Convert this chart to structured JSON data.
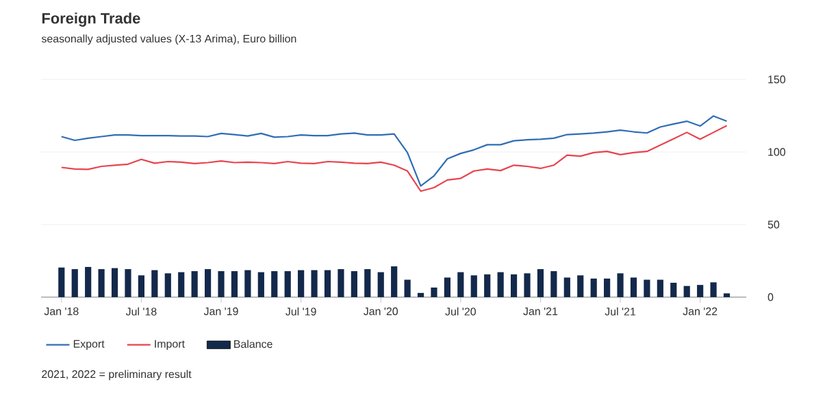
{
  "chart_data": {
    "type": "line",
    "title": "Foreign Trade",
    "subtitle": "seasonally adjusted values (X-13 Arima), Euro billion",
    "x": [
      "2018-01",
      "2018-02",
      "2018-03",
      "2018-04",
      "2018-05",
      "2018-06",
      "2018-07",
      "2018-08",
      "2018-09",
      "2018-10",
      "2018-11",
      "2018-12",
      "2019-01",
      "2019-02",
      "2019-03",
      "2019-04",
      "2019-05",
      "2019-06",
      "2019-07",
      "2019-08",
      "2019-09",
      "2019-10",
      "2019-11",
      "2019-12",
      "2020-01",
      "2020-02",
      "2020-03",
      "2020-04",
      "2020-05",
      "2020-06",
      "2020-07",
      "2020-08",
      "2020-09",
      "2020-10",
      "2020-11",
      "2020-12",
      "2021-01",
      "2021-02",
      "2021-03",
      "2021-04",
      "2021-05",
      "2021-06",
      "2021-07",
      "2021-08",
      "2021-09",
      "2021-10",
      "2021-11",
      "2021-12",
      "2022-01",
      "2022-02",
      "2022-03"
    ],
    "series": [
      {
        "name": "Export",
        "color": "#2f6db5",
        "values": [
          110.6,
          108,
          109.5,
          110.6,
          111.7,
          111.7,
          111.3,
          111.3,
          111.3,
          111,
          111,
          110.6,
          112.8,
          112,
          111,
          112.8,
          110.2,
          110.6,
          111.7,
          111.3,
          111.3,
          112.4,
          113,
          111.7,
          111.7,
          112.4,
          99.6,
          76.6,
          83.6,
          95.3,
          99,
          101.5,
          105,
          105,
          107.7,
          108.4,
          108.8,
          109.5,
          112,
          112.4,
          113,
          113.9,
          115,
          113.9,
          113.1,
          117.2,
          119.3,
          121.2,
          117.9,
          124.8,
          121.2
        ]
      },
      {
        "name": "Import",
        "color": "#e8434d",
        "values": [
          89.4,
          88.3,
          88,
          90.1,
          90.9,
          91.6,
          94.9,
          92.3,
          93.4,
          93,
          92,
          92.7,
          93.8,
          92.7,
          93,
          92.7,
          92,
          93.4,
          92.3,
          92,
          93.4,
          93,
          92.3,
          92,
          93,
          90.9,
          86.9,
          73,
          75.5,
          80.7,
          81.8,
          86.9,
          88.3,
          87.2,
          90.9,
          90.1,
          88.7,
          90.9,
          97.8,
          97.1,
          99.6,
          100.4,
          98.2,
          99.6,
          100.4,
          104.7,
          109.1,
          113.5,
          108.8,
          113.5,
          118.2
        ]
      },
      {
        "name": "Balance",
        "type": "bar",
        "color": "#13294b",
        "values": [
          20.4,
          19.3,
          20.8,
          19.3,
          20,
          19.3,
          15,
          18.6,
          16.4,
          17.2,
          17.9,
          19.3,
          17.9,
          17.9,
          18.6,
          17.2,
          17.9,
          17.9,
          18.6,
          18.6,
          18.6,
          19.3,
          17.9,
          19.3,
          17.2,
          21.2,
          12,
          2.9,
          6.6,
          13.5,
          17.2,
          15,
          15.7,
          17.2,
          15.7,
          16.4,
          19.3,
          17.9,
          13.5,
          15,
          12.8,
          12.8,
          16.4,
          13.5,
          12,
          12,
          9.9,
          7.7,
          8.4,
          10.2,
          2.6
        ]
      }
    ],
    "xlim": [
      "2017-11-15",
      "2022-04-15"
    ],
    "xticks": [
      {
        "value": "2018-01",
        "label": "Jan '18"
      },
      {
        "value": "2018-07",
        "label": "Jul '18"
      },
      {
        "value": "2019-01",
        "label": "Jan '19"
      },
      {
        "value": "2019-07",
        "label": "Jul '19"
      },
      {
        "value": "2020-01",
        "label": "Jan '20"
      },
      {
        "value": "2020-07",
        "label": "Jul '20"
      },
      {
        "value": "2021-01",
        "label": "Jan '21"
      },
      {
        "value": "2021-07",
        "label": "Jul '21"
      },
      {
        "value": "2022-01",
        "label": "Jan '22"
      }
    ],
    "ylim": [
      0,
      150
    ],
    "yticks": [
      0,
      50,
      100,
      150
    ],
    "grid": "y",
    "legend": "bottom",
    "annotations": [
      "2021, 2022 = preliminary result"
    ]
  }
}
